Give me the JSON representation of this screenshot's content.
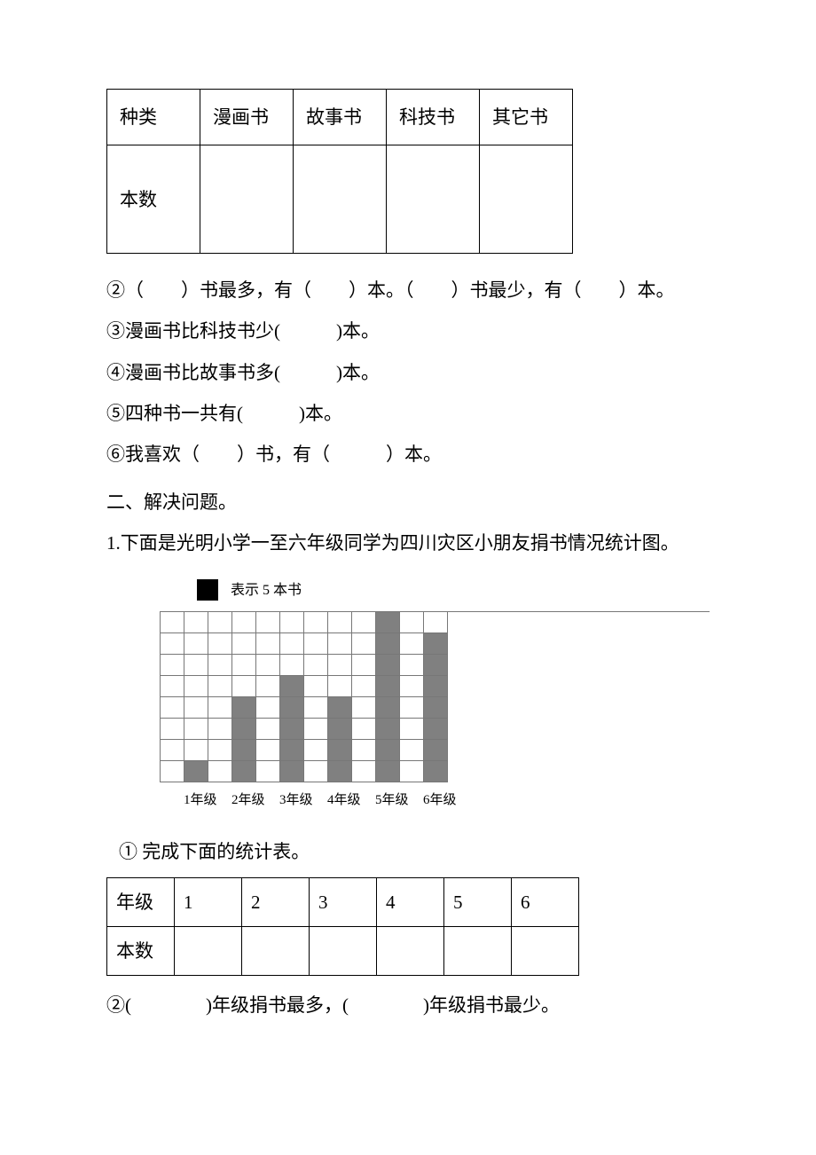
{
  "table1": {
    "headers": [
      "种类",
      "漫画书",
      "故事书",
      "科技书",
      "其它书"
    ],
    "row2_label": "本数"
  },
  "questions1": {
    "q2": "②（　　）书最多，有（　　）本。（　　）书最少，有（　　）本。",
    "q3": "③漫画书比科技书少(　　　)本。",
    "q4": "④漫画书比故事书多(　　　)本。",
    "q5": "⑤四种书一共有(　　　)本。",
    "q6": "⑥我喜欢（　　）书，有（　　　）本。"
  },
  "section2_title": "二、解决问题。",
  "section2_intro": "1.下面是光明小学一至六年级同学为四川灾区小朋友捐书情况统计图。",
  "chart": {
    "legend_text": "表示 5 本书",
    "rows": 8,
    "cols": 12,
    "bar_columns": [
      1,
      3,
      5,
      7,
      9,
      11
    ],
    "heights_by_bar_col": {
      "1": 1,
      "3": 4,
      "5": 5,
      "7": 4,
      "9": 8,
      "11": 7
    },
    "filled_color": "#808080",
    "empty_color": "#ffffff",
    "grid_color": "#777777",
    "x_labels": [
      "1年级",
      "2年级",
      "3年级",
      "4年级",
      "5年级",
      "6年级"
    ]
  },
  "q_under_chart": "①  完成下面的统计表。",
  "table2": {
    "row1": [
      "年级",
      "1",
      "2",
      "3",
      "4",
      "5",
      "6"
    ],
    "row2_label": "本数"
  },
  "q_last": "②(　　　　)年级捐书最多，(　　　　)年级捐书最少。"
}
